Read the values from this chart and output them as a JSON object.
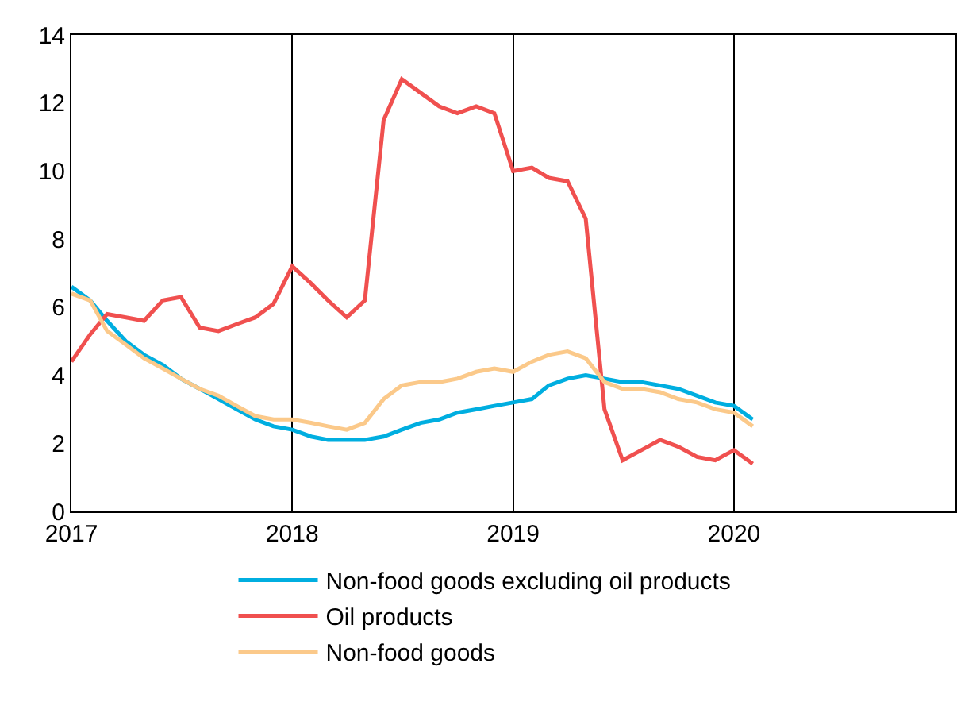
{
  "chart_data": {
    "type": "line",
    "x": [
      "2017-01",
      "2017-02",
      "2017-03",
      "2017-04",
      "2017-05",
      "2017-06",
      "2017-07",
      "2017-08",
      "2017-09",
      "2017-10",
      "2017-11",
      "2017-12",
      "2018-01",
      "2018-02",
      "2018-03",
      "2018-04",
      "2018-05",
      "2018-06",
      "2018-07",
      "2018-08",
      "2018-09",
      "2018-10",
      "2018-11",
      "2018-12",
      "2019-01",
      "2019-02",
      "2019-03",
      "2019-04",
      "2019-05",
      "2019-06",
      "2019-07",
      "2019-08",
      "2019-09",
      "2019-10",
      "2019-11",
      "2019-12",
      "2020-01",
      "2020-02"
    ],
    "series": [
      {
        "name": "Non-food goods excluding oil products",
        "color": "#00aee0",
        "values": [
          6.6,
          6.2,
          5.6,
          5.0,
          4.6,
          4.3,
          3.9,
          3.6,
          3.3,
          3.0,
          2.7,
          2.5,
          2.4,
          2.2,
          2.1,
          2.1,
          2.1,
          2.2,
          2.4,
          2.6,
          2.7,
          2.9,
          3.0,
          3.1,
          3.2,
          3.3,
          3.7,
          3.9,
          4.0,
          3.9,
          3.8,
          3.8,
          3.7,
          3.6,
          3.4,
          3.2,
          3.1,
          2.7
        ]
      },
      {
        "name": "Oil products",
        "color": "#f0504f",
        "values": [
          4.4,
          5.2,
          5.8,
          5.7,
          5.6,
          6.2,
          6.3,
          5.4,
          5.3,
          5.5,
          5.7,
          6.1,
          7.2,
          6.7,
          6.2,
          5.7,
          6.2,
          11.5,
          12.7,
          12.3,
          11.9,
          11.7,
          11.9,
          11.7,
          10.0,
          10.1,
          9.8,
          9.7,
          8.6,
          3.0,
          1.5,
          1.8,
          2.1,
          1.9,
          1.6,
          1.5,
          1.8,
          1.4
        ]
      },
      {
        "name": "Non-food goods",
        "color": "#fbc98a",
        "values": [
          6.4,
          6.2,
          5.3,
          4.9,
          4.5,
          4.2,
          3.9,
          3.6,
          3.4,
          3.1,
          2.8,
          2.7,
          2.7,
          2.6,
          2.5,
          2.4,
          2.6,
          3.3,
          3.7,
          3.8,
          3.8,
          3.9,
          4.1,
          4.2,
          4.1,
          4.4,
          4.6,
          4.7,
          4.5,
          3.8,
          3.6,
          3.6,
          3.5,
          3.3,
          3.2,
          3.0,
          2.9,
          2.5
        ]
      }
    ],
    "xlim": [
      "2017-01-01",
      "2021-01-01"
    ],
    "xticks": [
      {
        "value": "2017-01-01",
        "label": "2017"
      },
      {
        "value": "2018-01-01",
        "label": "2018"
      },
      {
        "value": "2019-01-01",
        "label": "2019"
      },
      {
        "value": "2020-01-01",
        "label": "2020"
      }
    ],
    "ylim": [
      0,
      14
    ],
    "yticks": [
      0,
      2,
      4,
      6,
      8,
      10,
      12,
      14
    ],
    "grid": "x",
    "legend": "bottom",
    "marker": "none",
    "line_style": "solid"
  }
}
